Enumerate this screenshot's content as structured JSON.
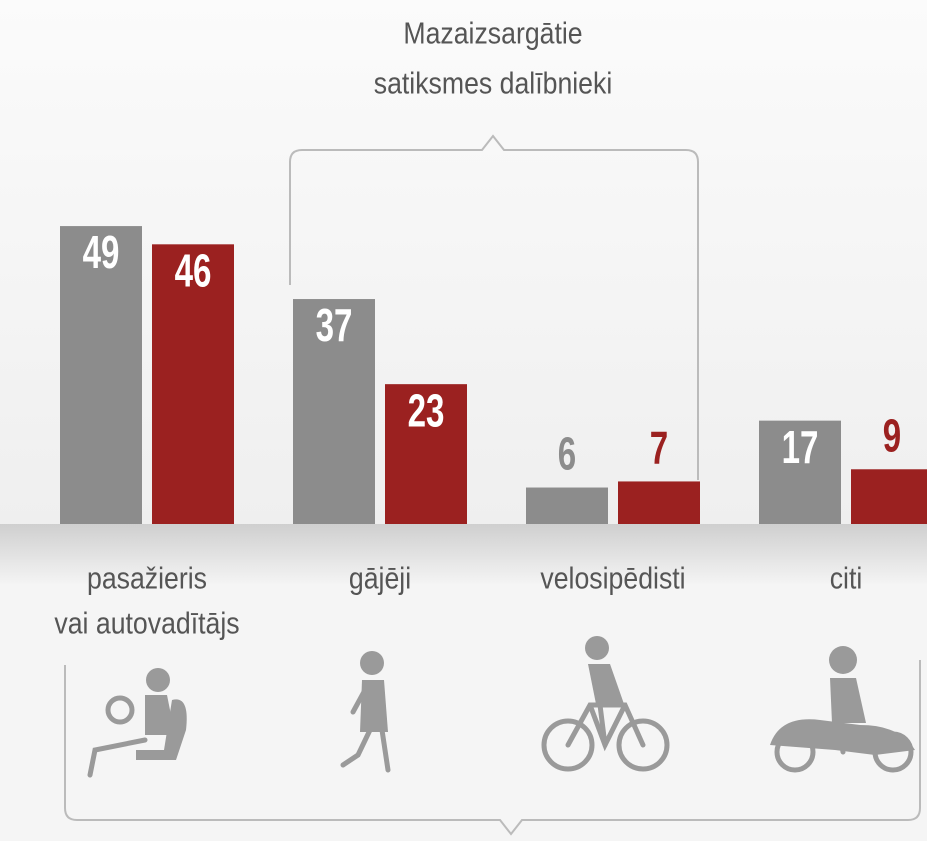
{
  "chart_data": {
    "type": "bar",
    "annotation": "Mazaizsargātie\nsatiksmes dalībnieki",
    "categories": [
      "pasažieris\nvai autovadītājs",
      "gājēji",
      "velosipēdisti",
      "citi"
    ],
    "series": [
      {
        "color": "#8c8c8c",
        "values": [
          49,
          37,
          6,
          17
        ]
      },
      {
        "color": "#9b2120",
        "values": [
          46,
          23,
          7,
          9
        ]
      }
    ]
  }
}
